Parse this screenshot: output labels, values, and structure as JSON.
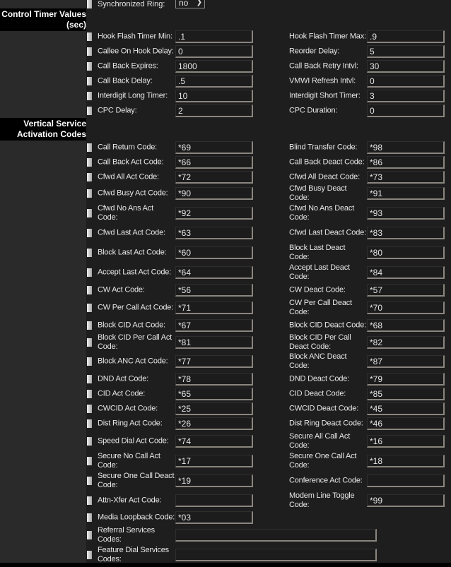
{
  "top_row": {
    "label": "Synchronized Ring:",
    "value": "no",
    "icon": "chevron-down-icon"
  },
  "sections": [
    {
      "title_lines": [
        "Control Timer Values",
        "(sec)"
      ],
      "rows": [
        {
          "left": {
            "label": "Hook Flash Timer Min:",
            "value": ".1"
          },
          "right": {
            "label": "Hook Flash Timer Max:",
            "value": ".9"
          }
        },
        {
          "left": {
            "label": "Callee On Hook Delay:",
            "value": "0"
          },
          "right": {
            "label": "Reorder Delay:",
            "value": "5"
          }
        },
        {
          "left": {
            "label": "Call Back Expires:",
            "value": "1800"
          },
          "right": {
            "label": "Call Back Retry Intvl:",
            "value": "30"
          }
        },
        {
          "left": {
            "label": "Call Back Delay:",
            "value": ".5"
          },
          "right": {
            "label": "VMWI Refresh Intvl:",
            "value": "0"
          }
        },
        {
          "left": {
            "label": "Interdigit Long Timer:",
            "value": "10"
          },
          "right": {
            "label": "Interdigit Short Timer:",
            "value": "3"
          }
        },
        {
          "left": {
            "label": "CPC Delay:",
            "value": "2"
          },
          "right": {
            "label": "CPC Duration:",
            "value": "0"
          }
        }
      ]
    },
    {
      "title_lines": [
        "Vertical Service",
        "Activation Codes"
      ],
      "rows": [
        {
          "left": {
            "label": "Call Return Code:",
            "value": "*69"
          },
          "right": {
            "label": "Blind Transfer Code:",
            "value": "*98"
          }
        },
        {
          "left": {
            "label": "Call Back Act Code:",
            "value": "*66"
          },
          "right": {
            "label": "Call Back Deact Code:",
            "value": "*86"
          }
        },
        {
          "left": {
            "label": "Cfwd All Act Code:",
            "value": "*72"
          },
          "right": {
            "label": "Cfwd All Deact Code:",
            "value": "*73"
          }
        },
        {
          "left": {
            "label": "Cfwd Busy Act Code:",
            "value": "*90"
          },
          "right": {
            "label": "Cfwd Busy Deact Code:",
            "value": "*91"
          }
        },
        {
          "left": {
            "label": "Cfwd No Ans Act Code:",
            "value": "*92"
          },
          "right": {
            "label": "Cfwd No Ans Deact Code:",
            "value": "*93"
          }
        },
        {
          "left": {
            "label": "Cfwd Last Act Code:",
            "value": "*63"
          },
          "right": {
            "label": "Cfwd Last Deact Code:",
            "value": "*83"
          }
        },
        {
          "left": {
            "label": "Block Last Act Code:",
            "value": "*60"
          },
          "right": {
            "label": "Block Last Deact Code:",
            "value": "*80"
          }
        },
        {
          "left": {
            "label": "Accept Last Act Code:",
            "value": "*64"
          },
          "right": {
            "label": "Accept Last Deact Code:",
            "value": "*84"
          }
        },
        {
          "left": {
            "label": "CW Act Code:",
            "value": "*56"
          },
          "right": {
            "label": "CW Deact Code:",
            "value": "*57"
          }
        },
        {
          "left": {
            "label": "CW Per Call Act Code:",
            "value": "*71"
          },
          "right": {
            "label": "CW Per Call Deact Code:",
            "value": "*70"
          }
        },
        {
          "left": {
            "label": "Block CID Act Code:",
            "value": "*67"
          },
          "right": {
            "label": "Block CID Deact Code:",
            "value": "*68"
          }
        },
        {
          "left": {
            "label": "Block CID Per Call Act Code:",
            "value": "*81"
          },
          "right": {
            "label": "Block CID Per Call Deact Code:",
            "value": "*82"
          }
        },
        {
          "left": {
            "label": "Block ANC Act Code:",
            "value": "*77"
          },
          "right": {
            "label": "Block ANC Deact Code:",
            "value": "*87"
          }
        },
        {
          "left": {
            "label": "DND Act Code:",
            "value": "*78"
          },
          "right": {
            "label": "DND Deact Code:",
            "value": "*79"
          }
        },
        {
          "left": {
            "label": "CID Act Code:",
            "value": "*65"
          },
          "right": {
            "label": "CID Deact Code:",
            "value": "*85"
          }
        },
        {
          "left": {
            "label": "CWCID Act Code:",
            "value": "*25"
          },
          "right": {
            "label": "CWCID Deact Code:",
            "value": "*45"
          }
        },
        {
          "left": {
            "label": "Dist Ring Act Code:",
            "value": "*26"
          },
          "right": {
            "label": "Dist Ring Deact Code:",
            "value": "*46"
          }
        },
        {
          "left": {
            "label": "Speed Dial Act Code:",
            "value": "*74"
          },
          "right": {
            "label": "Secure All Call Act Code:",
            "value": "*16"
          }
        },
        {
          "left": {
            "label": "Secure No Call Act Code:",
            "value": "*17"
          },
          "right": {
            "label": "Secure One Call Act Code:",
            "value": "*18"
          }
        },
        {
          "left": {
            "label": "Secure One Call Deact Code:",
            "value": "*19"
          },
          "right": {
            "label": "Conference Act Code:",
            "value": ""
          }
        },
        {
          "left": {
            "label": "Attn-Xfer Act Code:",
            "value": ""
          },
          "right": {
            "label": "Modem Line Toggle Code:",
            "value": "*99"
          }
        },
        {
          "left": {
            "label": "Media Loopback Code:",
            "value": "*03"
          }
        },
        {
          "wide": {
            "label": "Referral Services Codes:",
            "value": ""
          }
        },
        {
          "wide": {
            "label": "Feature Dial Services Codes:",
            "value": ""
          }
        }
      ]
    }
  ]
}
